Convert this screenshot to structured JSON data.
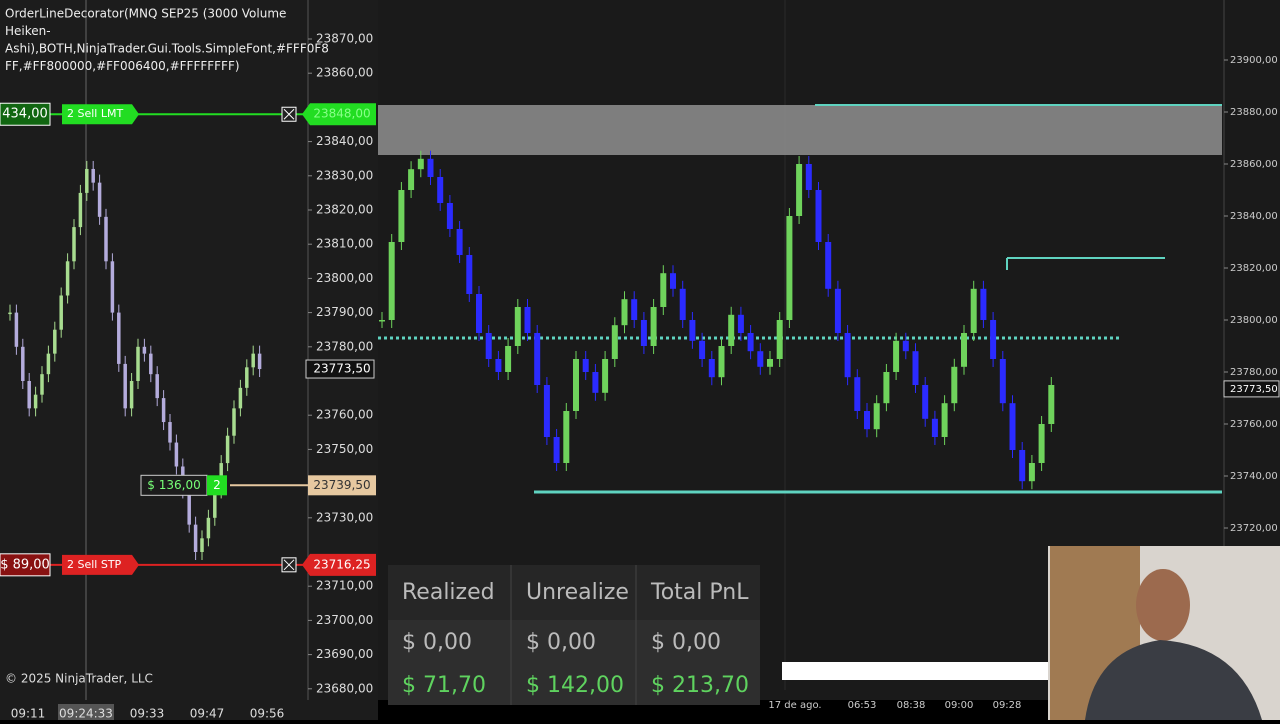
{
  "left_chart": {
    "indicator_text": [
      "OrderLineDecorator(MNQ SEP25 (3000 Volume",
      "Heiken-",
      "Ashi),BOTH,NinjaTrader.Gui.Tools.SimpleFont,#FFF0F8",
      "FF,#FF800000,#FF006400,#FFFFFFFF)"
    ],
    "copyright": "© 2025 NinjaTrader, LLC",
    "price_axis": [
      {
        "value": 23870,
        "label": "23870,00"
      },
      {
        "value": 23860,
        "label": "23860,00"
      },
      {
        "value": 23840,
        "label": "23840,00"
      },
      {
        "value": 23830,
        "label": "23830,00"
      },
      {
        "value": 23820,
        "label": "23820,00"
      },
      {
        "value": 23810,
        "label": "23810,00"
      },
      {
        "value": 23800,
        "label": "23800,00"
      },
      {
        "value": 23790,
        "label": "23790,00"
      },
      {
        "value": 23780,
        "label": "23780,00"
      },
      {
        "value": 23760,
        "label": "23760,00"
      },
      {
        "value": 23750,
        "label": "23750,00"
      },
      {
        "value": 23730,
        "label": "23730,00"
      },
      {
        "value": 23710,
        "label": "23710,00"
      },
      {
        "value": 23700,
        "label": "23700,00"
      },
      {
        "value": 23690,
        "label": "23690,00"
      },
      {
        "value": 23680,
        "label": "23680,00"
      }
    ],
    "closes": [
      23790,
      23780,
      23770,
      23762,
      23766,
      23772,
      23778,
      23785,
      23795,
      23805,
      23815,
      23825,
      23832,
      23828,
      23818,
      23805,
      23790,
      23775,
      23762,
      23770,
      23780,
      23778,
      23772,
      23765,
      23758,
      23752,
      23745,
      23738,
      23728,
      23720,
      23724,
      23730,
      23738,
      23746,
      23754,
      23762,
      23768,
      23774,
      23778,
      23773.5
    ],
    "time_axis": [
      "09:11",
      "09:24:33",
      "09:33",
      "09:47",
      "09:56"
    ],
    "orders": {
      "sell_limit": {
        "pnl": "434,00",
        "label": "2  Sell LMT",
        "price": {
          "value": 23848,
          "label": "23848,00"
        }
      },
      "sell_stop": {
        "pnl": "$ 89,00",
        "label": "2  Sell STP",
        "price": {
          "value": 23716.25,
          "label": "23716,25"
        }
      },
      "position": {
        "pnl": "$ 136,00",
        "qty": "2",
        "price": {
          "value": 23739.5,
          "label": "23739,50"
        }
      }
    },
    "last_price": {
      "value": 23773.5,
      "label": "23773,50"
    }
  },
  "right_chart": {
    "price_axis": [
      {
        "value": 23900,
        "label": "23900,00"
      },
      {
        "value": 23880,
        "label": "23880,00"
      },
      {
        "value": 23860,
        "label": "23860,00"
      },
      {
        "value": 23840,
        "label": "23840,00"
      },
      {
        "value": 23820,
        "label": "23820,00"
      },
      {
        "value": 23800,
        "label": "23800,00"
      },
      {
        "value": 23780,
        "label": "23780,00"
      },
      {
        "value": 23760,
        "label": "23760,00"
      },
      {
        "value": 23740,
        "label": "23740,00"
      },
      {
        "value": 23720,
        "label": "23720,00"
      }
    ],
    "closes": [
      23800,
      23830,
      23850,
      23858,
      23862,
      23855,
      23845,
      23835,
      23825,
      23810,
      23795,
      23785,
      23780,
      23790,
      23805,
      23795,
      23775,
      23755,
      23745,
      23765,
      23785,
      23780,
      23772,
      23785,
      23798,
      23808,
      23800,
      23790,
      23805,
      23818,
      23812,
      23800,
      23792,
      23785,
      23778,
      23790,
      23802,
      23795,
      23788,
      23782,
      23785,
      23800,
      23840,
      23860,
      23850,
      23830,
      23812,
      23795,
      23778,
      23765,
      23758,
      23768,
      23780,
      23792,
      23788,
      23775,
      23762,
      23755,
      23768,
      23782,
      23795,
      23812,
      23800,
      23785,
      23768,
      23750,
      23738,
      23745,
      23760,
      23775
    ],
    "time_axis": [
      "17 de ago.",
      "06:53",
      "08:38",
      "09:00",
      "09:28"
    ],
    "last_price": {
      "value": 23773.5,
      "label": "23773,50"
    }
  },
  "pnl_table": {
    "headers": [
      "Realized",
      "Unrealize",
      "Total PnL"
    ],
    "rows": [
      [
        "$ 0,00",
        "$ 0,00",
        "$ 0,00"
      ],
      [
        "$ 71,70",
        "$ 142,00",
        "$ 213,70"
      ]
    ]
  }
}
